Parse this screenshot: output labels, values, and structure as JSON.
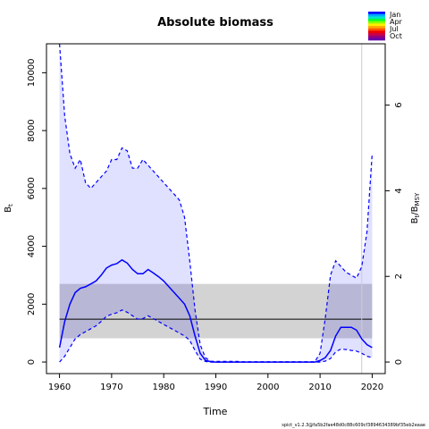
{
  "chart_data": {
    "type": "line",
    "title": "Absolute biomass",
    "xlabel": "Time",
    "ylabel_left": "B",
    "ylabel_left_sub": "t",
    "ylabel_right": "B",
    "ylabel_right_sub": "t",
    "ylabel_right_den": "/B",
    "ylabel_right_den_sub": "MSY",
    "footer": "spict_v1.2.3@fa5b2fae48d0c88c609cf3894634389bf35eb2eaae",
    "xlim": [
      1957.5,
      2022.5
    ],
    "ylim": [
      -400,
      11000
    ],
    "xticks": [
      1960,
      1970,
      1980,
      1990,
      2000,
      2010,
      2020
    ],
    "yticks": [
      0,
      2000,
      4000,
      6000,
      8000,
      10000
    ],
    "right_ticks": [
      0,
      2,
      4,
      6
    ],
    "bmsy": 1480,
    "bmsy_band": [
      820,
      2700
    ],
    "vline_x": 2018,
    "x": [
      1960,
      1961,
      1962,
      1963,
      1964,
      1965,
      1966,
      1967,
      1968,
      1969,
      1970,
      1971,
      1972,
      1973,
      1974,
      1975,
      1976,
      1977,
      1978,
      1979,
      1980,
      1981,
      1982,
      1983,
      1984,
      1985,
      1986,
      1987,
      1988,
      1989,
      1990,
      1991,
      1992,
      1993,
      1994,
      1995,
      1996,
      1997,
      1998,
      1999,
      2000,
      2001,
      2002,
      2003,
      2004,
      2005,
      2006,
      2007,
      2008,
      2009,
      2010,
      2011,
      2012,
      2013,
      2014,
      2015,
      2016,
      2017,
      2018,
      2019,
      2020
    ],
    "series": [
      {
        "name": "",
        "values": [
          500,
          1400,
          2000,
          2400,
          2550,
          2600,
          2700,
          2800,
          3000,
          3250,
          3350,
          3400,
          3530,
          3420,
          3200,
          3050,
          3050,
          3200,
          3080,
          2950,
          2800,
          2600,
          2400,
          2200,
          2000,
          1600,
          900,
          300,
          60,
          10,
          0,
          0,
          0,
          0,
          0,
          0,
          0,
          0,
          0,
          0,
          0,
          0,
          0,
          0,
          0,
          0,
          0,
          0,
          0,
          0,
          50,
          150,
          400,
          900,
          1200,
          1200,
          1200,
          1100,
          800,
          600,
          500
        ]
      },
      {
        "name": "",
        "values": [
          0,
          200,
          500,
          800,
          950,
          1050,
          1150,
          1250,
          1400,
          1580,
          1650,
          1700,
          1800,
          1720,
          1600,
          1480,
          1500,
          1600,
          1500,
          1400,
          1300,
          1200,
          1100,
          1000,
          900,
          750,
          400,
          100,
          20,
          0,
          0,
          0,
          0,
          0,
          0,
          0,
          0,
          0,
          0,
          0,
          0,
          0,
          0,
          0,
          0,
          0,
          0,
          0,
          0,
          0,
          0,
          30,
          120,
          350,
          450,
          430,
          400,
          380,
          300,
          200,
          150
        ]
      },
      {
        "name": "",
        "values": [
          11000,
          8500,
          7200,
          6700,
          7000,
          6200,
          6000,
          6200,
          6400,
          6600,
          7000,
          7000,
          7400,
          7300,
          6700,
          6700,
          7000,
          6800,
          6600,
          6400,
          6200,
          6000,
          5800,
          5600,
          5000,
          3500,
          1800,
          600,
          150,
          30,
          20,
          20,
          20,
          20,
          20,
          10,
          10,
          10,
          10,
          10,
          10,
          10,
          10,
          10,
          10,
          10,
          10,
          10,
          10,
          10,
          300,
          1500,
          3000,
          3500,
          3300,
          3100,
          3000,
          2900,
          3300,
          4500,
          7200
        ]
      }
    ],
    "legend": [
      "Jan",
      "Apr",
      "Jul",
      "Oct"
    ],
    "colors": {
      "main": "#0000ff",
      "ci_fill": "#e0e0ff",
      "ci_line": "#a0a0c8",
      "band": "#d3d3d3",
      "overlap": "#b8b8d6",
      "vline": "#cccccc"
    },
    "legend_colors": [
      "#0000ff",
      "#00aaff",
      "#00e5cc",
      "#00ff33",
      "#88ff00",
      "#ffee00",
      "#ffaa00",
      "#ff5500",
      "#ee0000",
      "#cc0044",
      "#990077",
      "#6600aa"
    ]
  }
}
